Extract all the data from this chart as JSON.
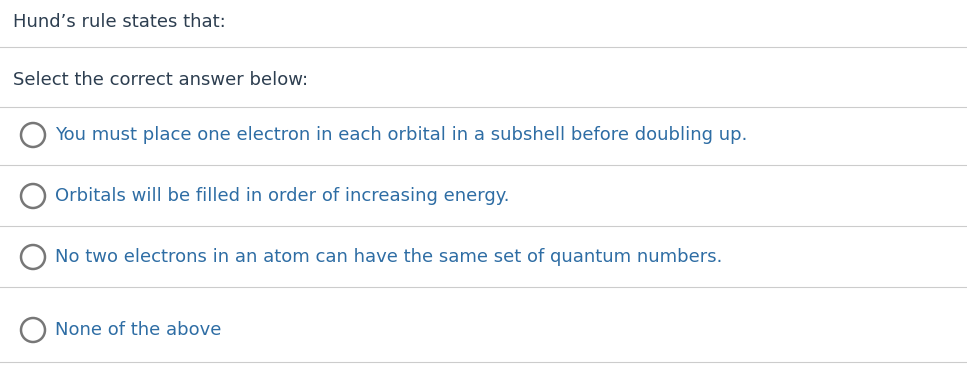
{
  "title": "Hund’s rule states that:",
  "subtitle": "Select the correct answer below:",
  "options": [
    "You must place one electron in each orbital in a subshell before doubling up.",
    "Orbitals will be filled in order of increasing energy.",
    "No two electrons in an atom can have the same set of quantum numbers.",
    "None of the above"
  ],
  "bg_color": "#ffffff",
  "title_color": "#2d3e50",
  "option_color": "#2e6da4",
  "subtitle_color": "#2d3e50",
  "line_color": "#cccccc",
  "circle_edgecolor": "#777777",
  "title_fontsize": 13.0,
  "subtitle_fontsize": 13.0,
  "option_fontsize": 13.0,
  "figwidth": 9.67,
  "figheight": 3.87,
  "dpi": 100
}
